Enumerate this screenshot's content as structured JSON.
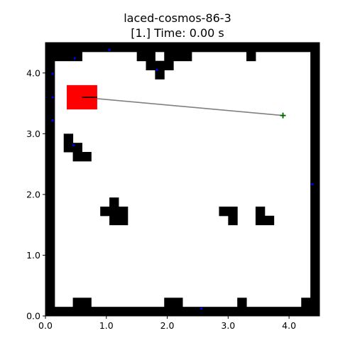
{
  "figure": {
    "title_line1": "laced-cosmos-86-3",
    "title_line2": "[1.] Time: 0.00 s"
  },
  "chart_data": {
    "type": "scatter",
    "title": "laced-cosmos-86-3\n[1.] Time: 0.00 s",
    "xlim": [
      0.0,
      4.5
    ],
    "ylim": [
      0.0,
      4.5
    ],
    "xticks": [
      {
        "value": 0.0,
        "label": "0.0"
      },
      {
        "value": 1.0,
        "label": "1.0"
      },
      {
        "value": 2.0,
        "label": "2.0"
      },
      {
        "value": 3.0,
        "label": "3.0"
      },
      {
        "value": 4.0,
        "label": "4.0"
      }
    ],
    "yticks": [
      {
        "value": 0.0,
        "label": "0.0"
      },
      {
        "value": 1.0,
        "label": "1.0"
      },
      {
        "value": 2.0,
        "label": "2.0"
      },
      {
        "value": 3.0,
        "label": "3.0"
      },
      {
        "value": 4.0,
        "label": "4.0"
      }
    ],
    "grid": false,
    "obstacles": [
      [
        0.0,
        0.0,
        0.15,
        4.5
      ],
      [
        4.35,
        0.0,
        0.15,
        4.5
      ],
      [
        0.0,
        0.0,
        4.5,
        0.15
      ],
      [
        0.0,
        4.35,
        4.5,
        0.15
      ],
      [
        0.15,
        4.2,
        0.45,
        0.15
      ],
      [
        1.5,
        4.2,
        0.3,
        0.15
      ],
      [
        1.95,
        4.2,
        0.45,
        0.15
      ],
      [
        3.3,
        4.2,
        0.15,
        0.15
      ],
      [
        1.65,
        4.05,
        0.45,
        0.15
      ],
      [
        1.8,
        3.9,
        0.15,
        0.15
      ],
      [
        0.3,
        2.85,
        0.15,
        0.15
      ],
      [
        0.3,
        2.7,
        0.3,
        0.15
      ],
      [
        0.45,
        2.55,
        0.3,
        0.15
      ],
      [
        1.05,
        1.8,
        0.15,
        0.15
      ],
      [
        0.9,
        1.65,
        0.45,
        0.15
      ],
      [
        1.05,
        1.5,
        0.3,
        0.15
      ],
      [
        2.85,
        1.65,
        0.3,
        0.15
      ],
      [
        3.0,
        1.5,
        0.15,
        0.15
      ],
      [
        3.45,
        1.65,
        0.15,
        0.15
      ],
      [
        3.45,
        1.5,
        0.3,
        0.15
      ],
      [
        0.45,
        0.15,
        0.3,
        0.15
      ],
      [
        1.95,
        0.15,
        0.3,
        0.15
      ],
      [
        3.15,
        0.15,
        0.15,
        0.15
      ],
      [
        4.2,
        0.15,
        0.15,
        0.15
      ]
    ],
    "robot": {
      "x0": 0.35,
      "y0": 3.4,
      "width": 0.5,
      "height": 0.4,
      "color": "#ff0000"
    },
    "heading_segment": {
      "from": [
        0.6,
        3.6
      ],
      "to": [
        0.85,
        3.6
      ],
      "color": "#000000"
    },
    "path_to_goal": {
      "from": [
        0.6,
        3.6
      ],
      "to": [
        3.9,
        3.3
      ],
      "color": "#808080"
    },
    "goal": {
      "x": 3.9,
      "y": 3.3,
      "marker": "+",
      "color": "#006400"
    },
    "points": {
      "color": "#0000ff",
      "items": [
        {
          "x": 0.48,
          "y": 4.24
        },
        {
          "x": 1.05,
          "y": 4.38
        },
        {
          "x": 0.12,
          "y": 3.99
        },
        {
          "x": 0.12,
          "y": 3.6
        },
        {
          "x": 0.12,
          "y": 3.22
        },
        {
          "x": 0.46,
          "y": 2.81
        },
        {
          "x": 1.83,
          "y": 4.05
        },
        {
          "x": 4.38,
          "y": 2.17
        },
        {
          "x": 2.56,
          "y": 0.12
        }
      ]
    }
  }
}
